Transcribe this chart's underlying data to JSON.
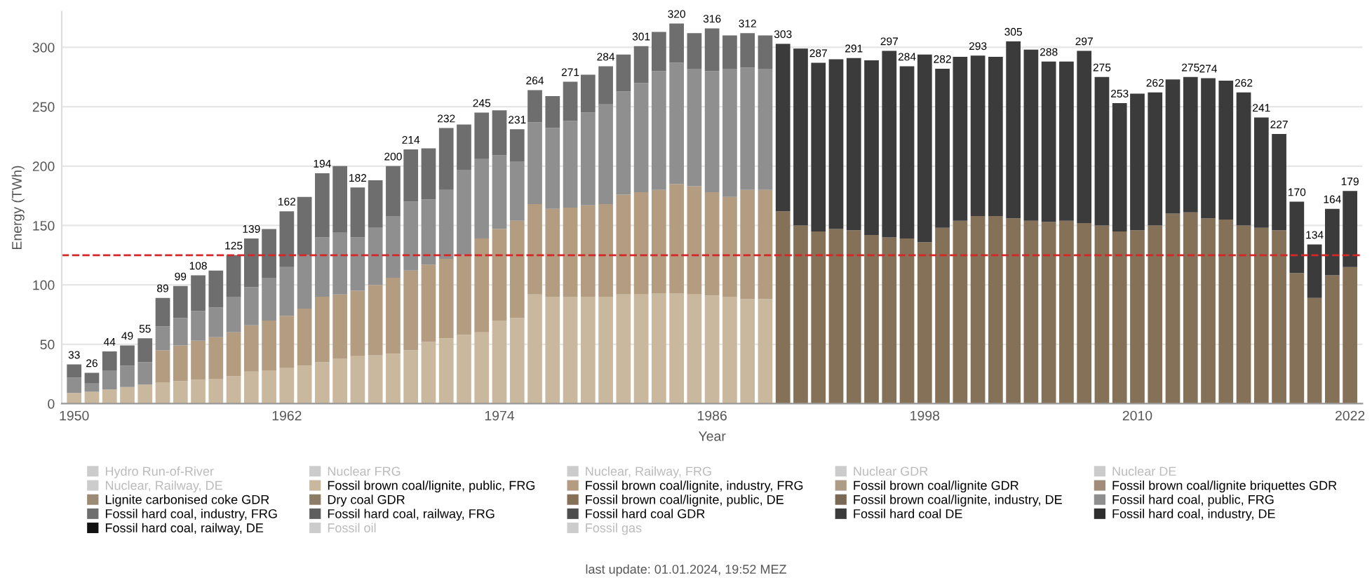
{
  "chart_data": {
    "type": "bar",
    "stacked": true,
    "xlabel": "Year",
    "ylabel": "Energy (TWh)",
    "x": [
      1950,
      1951,
      1952,
      1953,
      1954,
      1955,
      1956,
      1957,
      1958,
      1959,
      1960,
      1961,
      1962,
      1963,
      1964,
      1965,
      1966,
      1967,
      1968,
      1969,
      1970,
      1971,
      1972,
      1973,
      1974,
      1975,
      1976,
      1977,
      1978,
      1979,
      1980,
      1981,
      1982,
      1983,
      1984,
      1985,
      1986,
      1987,
      1988,
      1989,
      1990,
      1991,
      1992,
      1993,
      1994,
      1995,
      1996,
      1997,
      1998,
      1999,
      2000,
      2001,
      2002,
      2003,
      2004,
      2005,
      2006,
      2007,
      2008,
      2009,
      2010,
      2011,
      2012,
      2013,
      2014,
      2015,
      2016,
      2017,
      2018,
      2019,
      2020,
      2021,
      2022
    ],
    "xlim": [
      1949.3,
      2022.7
    ],
    "xticks": [
      1950,
      1962,
      1974,
      1986,
      1998,
      2010,
      2022
    ],
    "ylim": [
      0,
      330
    ],
    "yticks": [
      0,
      50,
      100,
      150,
      200,
      250,
      300
    ],
    "grid": "y",
    "legend": "bottom",
    "series": [
      {
        "name": "Hydro Run-of-River",
        "color": "#cccccc",
        "values": [
          null,
          null,
          null,
          null,
          null,
          null,
          null,
          null,
          null,
          null,
          null,
          null,
          null,
          null,
          null,
          null,
          null,
          null,
          null,
          null,
          null,
          null,
          null,
          null,
          null,
          null,
          null,
          null,
          null,
          null,
          null,
          null,
          null,
          null,
          null,
          null,
          null,
          null,
          null,
          null,
          null,
          null,
          null,
          null,
          null,
          null,
          null,
          null,
          null,
          null,
          null,
          null,
          null,
          null,
          null,
          null,
          null,
          null,
          null,
          null,
          null,
          null,
          null,
          null,
          null,
          null,
          null,
          null,
          null,
          null,
          null,
          null,
          null
        ]
      },
      {
        "name": "Nuclear FRG",
        "color": "#cccccc",
        "values": [
          null,
          null,
          null,
          null,
          null,
          null,
          null,
          null,
          null,
          null,
          null,
          null,
          null,
          null,
          null,
          null,
          null,
          null,
          null,
          null,
          null,
          null,
          null,
          null,
          null,
          null,
          null,
          null,
          null,
          null,
          null,
          null,
          null,
          null,
          null,
          null,
          null,
          null,
          null,
          null,
          null,
          null,
          null,
          null,
          null,
          null,
          null,
          null,
          null,
          null,
          null,
          null,
          null,
          null,
          null,
          null,
          null,
          null,
          null,
          null,
          null,
          null,
          null,
          null,
          null,
          null,
          null,
          null,
          null,
          null,
          null,
          null,
          null
        ]
      },
      {
        "name": "Nuclear, Railway, FRG",
        "color": "#cccccc",
        "values": [
          null,
          null,
          null,
          null,
          null,
          null,
          null,
          null,
          null,
          null,
          null,
          null,
          null,
          null,
          null,
          null,
          null,
          null,
          null,
          null,
          null,
          null,
          null,
          null,
          null,
          null,
          null,
          null,
          null,
          null,
          null,
          null,
          null,
          null,
          null,
          null,
          null,
          null,
          null,
          null,
          null,
          null,
          null,
          null,
          null,
          null,
          null,
          null,
          null,
          null,
          null,
          null,
          null,
          null,
          null,
          null,
          null,
          null,
          null,
          null,
          null,
          null,
          null,
          null,
          null,
          null,
          null,
          null,
          null,
          null,
          null,
          null,
          null
        ]
      },
      {
        "name": "Nuclear GDR",
        "color": "#cccccc",
        "values": [
          null,
          null,
          null,
          null,
          null,
          null,
          null,
          null,
          null,
          null,
          null,
          null,
          null,
          null,
          null,
          null,
          null,
          null,
          null,
          null,
          null,
          null,
          null,
          null,
          null,
          null,
          null,
          null,
          null,
          null,
          null,
          null,
          null,
          null,
          null,
          null,
          null,
          null,
          null,
          null,
          null,
          null,
          null,
          null,
          null,
          null,
          null,
          null,
          null,
          null,
          null,
          null,
          null,
          null,
          null,
          null,
          null,
          null,
          null,
          null,
          null,
          null,
          null,
          null,
          null,
          null,
          null,
          null,
          null,
          null,
          null,
          null,
          null
        ]
      },
      {
        "name": "Nuclear DE",
        "color": "#cccccc",
        "values": [
          null,
          null,
          null,
          null,
          null,
          null,
          null,
          null,
          null,
          null,
          null,
          null,
          null,
          null,
          null,
          null,
          null,
          null,
          null,
          null,
          null,
          null,
          null,
          null,
          null,
          null,
          null,
          null,
          null,
          null,
          null,
          null,
          null,
          null,
          null,
          null,
          null,
          null,
          null,
          null,
          null,
          null,
          null,
          null,
          null,
          null,
          null,
          null,
          null,
          null,
          null,
          null,
          null,
          null,
          null,
          null,
          null,
          null,
          null,
          null,
          null,
          null,
          null,
          null,
          null,
          null,
          null,
          null,
          null,
          null,
          null,
          null,
          null
        ]
      },
      {
        "name": "Nuclear, Railway, DE",
        "color": "#cccccc",
        "values": [
          null,
          null,
          null,
          null,
          null,
          null,
          null,
          null,
          null,
          null,
          null,
          null,
          null,
          null,
          null,
          null,
          null,
          null,
          null,
          null,
          null,
          null,
          null,
          null,
          null,
          null,
          null,
          null,
          null,
          null,
          null,
          null,
          null,
          null,
          null,
          null,
          null,
          null,
          null,
          null,
          null,
          null,
          null,
          null,
          null,
          null,
          null,
          null,
          null,
          null,
          null,
          null,
          null,
          null,
          null,
          null,
          null,
          null,
          null,
          null,
          null,
          null,
          null,
          null,
          null,
          null,
          null,
          null,
          null,
          null,
          null,
          null,
          null
        ]
      },
      {
        "name": "Fossil brown coal/lignite, public, FRG",
        "color": "#c9b89e",
        "values": [
          9,
          10,
          12,
          14,
          16,
          18,
          19,
          20,
          21,
          23,
          27,
          28,
          30,
          32,
          35,
          38,
          40,
          41,
          42,
          45,
          52,
          55,
          58,
          60,
          70,
          72,
          92,
          90,
          90,
          90,
          90,
          92,
          92,
          93,
          93,
          92,
          91,
          90,
          88,
          88,
          null,
          null,
          null,
          null,
          null,
          null,
          null,
          null,
          null,
          null,
          null,
          null,
          null,
          null,
          null,
          null,
          null,
          null,
          null,
          null,
          null,
          null,
          null,
          null,
          null,
          null,
          null,
          null,
          null,
          null,
          null,
          null,
          null
        ]
      },
      {
        "name": "Fossil brown coal/lignite, industry, FRG",
        "color": "#b39c80",
        "values": [
          0,
          0,
          0,
          0,
          0,
          27,
          30,
          33,
          35,
          37,
          39,
          42,
          44,
          48,
          55,
          54,
          55,
          59,
          64,
          67,
          65,
          67,
          67,
          79,
          77,
          82,
          76,
          74,
          75,
          77,
          78,
          84,
          86,
          87,
          92,
          91,
          87,
          84,
          92,
          92,
          null,
          null,
          null,
          null,
          null,
          null,
          null,
          null,
          null,
          null,
          null,
          null,
          null,
          null,
          null,
          null,
          null,
          null,
          null,
          null,
          null,
          null,
          null,
          null,
          null,
          null,
          null,
          null,
          null,
          null,
          null,
          null,
          null
        ]
      },
      {
        "name": "Fossil brown coal/lignite GDR",
        "color": "#ad9d86",
        "values": [
          null,
          null,
          null,
          null,
          null,
          null,
          null,
          null,
          null,
          null,
          null,
          null,
          null,
          null,
          null,
          null,
          null,
          null,
          null,
          null,
          null,
          null,
          null,
          null,
          null,
          null,
          null,
          null,
          null,
          null,
          null,
          null,
          null,
          null,
          null,
          null,
          null,
          null,
          null,
          null,
          null,
          null,
          null,
          null,
          null,
          null,
          null,
          null,
          null,
          null,
          null,
          null,
          null,
          null,
          null,
          null,
          null,
          null,
          null,
          null,
          null,
          null,
          null,
          null,
          null,
          null,
          null,
          null,
          null,
          null,
          null,
          null,
          null
        ]
      },
      {
        "name": "Fossil brown coal/lignite briquettes GDR",
        "color": "#a08c78",
        "values": [
          null,
          null,
          null,
          null,
          null,
          null,
          null,
          null,
          null,
          null,
          null,
          null,
          null,
          null,
          null,
          null,
          null,
          null,
          null,
          null,
          null,
          null,
          null,
          null,
          null,
          null,
          null,
          null,
          null,
          null,
          null,
          null,
          null,
          null,
          null,
          null,
          null,
          null,
          null,
          null,
          null,
          null,
          null,
          null,
          null,
          null,
          null,
          null,
          null,
          null,
          null,
          null,
          null,
          null,
          null,
          null,
          null,
          null,
          null,
          null,
          null,
          null,
          null,
          null,
          null,
          null,
          null,
          null,
          null,
          null,
          null,
          null,
          null
        ]
      },
      {
        "name": "Lignite carbonised coke GDR",
        "color": "#9b8a74",
        "values": [
          null,
          null,
          null,
          null,
          null,
          null,
          null,
          null,
          null,
          null,
          null,
          null,
          null,
          null,
          null,
          null,
          null,
          null,
          null,
          null,
          null,
          null,
          null,
          null,
          null,
          null,
          null,
          null,
          null,
          null,
          null,
          null,
          null,
          null,
          null,
          null,
          null,
          null,
          null,
          null,
          null,
          null,
          null,
          null,
          null,
          null,
          null,
          null,
          null,
          null,
          null,
          null,
          null,
          null,
          null,
          null,
          null,
          null,
          null,
          null,
          null,
          null,
          null,
          null,
          null,
          null,
          null,
          null,
          null,
          null,
          null,
          null,
          null
        ]
      },
      {
        "name": "Dry coal GDR",
        "color": "#8c7c66",
        "values": [
          null,
          null,
          null,
          null,
          null,
          null,
          null,
          null,
          null,
          null,
          null,
          null,
          null,
          null,
          null,
          null,
          null,
          null,
          null,
          null,
          null,
          null,
          null,
          null,
          null,
          null,
          null,
          null,
          null,
          null,
          null,
          null,
          null,
          null,
          null,
          null,
          null,
          null,
          null,
          null,
          null,
          null,
          null,
          null,
          null,
          null,
          null,
          null,
          null,
          null,
          null,
          null,
          null,
          null,
          null,
          null,
          null,
          null,
          null,
          null,
          null,
          null,
          null,
          null,
          null,
          null,
          null,
          null,
          null,
          null,
          null,
          null,
          null
        ]
      },
      {
        "name": "Fossil brown coal/lignite, public, DE",
        "color": "#857157",
        "values": [
          null,
          null,
          null,
          null,
          null,
          null,
          null,
          null,
          null,
          null,
          null,
          null,
          null,
          null,
          null,
          null,
          null,
          null,
          null,
          null,
          null,
          null,
          null,
          null,
          null,
          null,
          null,
          null,
          null,
          null,
          null,
          null,
          null,
          null,
          null,
          null,
          null,
          null,
          null,
          null,
          162,
          150,
          145,
          147,
          146,
          142,
          140,
          139,
          136,
          148,
          154,
          158,
          158,
          156,
          154,
          153,
          154,
          152,
          150,
          145,
          146,
          150,
          160,
          161,
          156,
          155,
          150,
          148,
          146,
          110,
          89,
          108,
          115
        ]
      },
      {
        "name": "Fossil brown coal/lignite, industry, DE",
        "color": "#7a6a55",
        "values": [
          null,
          null,
          null,
          null,
          null,
          null,
          null,
          null,
          null,
          null,
          null,
          null,
          null,
          null,
          null,
          null,
          null,
          null,
          null,
          null,
          null,
          null,
          null,
          null,
          null,
          null,
          null,
          null,
          null,
          null,
          null,
          null,
          null,
          null,
          null,
          null,
          null,
          null,
          null,
          null,
          null,
          null,
          null,
          null,
          null,
          null,
          null,
          null,
          null,
          null,
          null,
          null,
          null,
          null,
          null,
          null,
          null,
          null,
          null,
          null,
          null,
          null,
          null,
          null,
          null,
          null,
          null,
          null,
          null,
          null,
          null,
          null,
          null
        ]
      },
      {
        "name": "Fossil hard coal, public, FRG",
        "color": "#8f8f8f",
        "values": [
          13,
          7,
          16,
          18,
          19,
          20,
          23,
          25,
          25,
          30,
          32,
          36,
          41,
          45,
          50,
          52,
          45,
          48,
          52,
          58,
          55,
          58,
          72,
          67,
          62,
          50,
          69,
          68,
          73,
          78,
          84,
          87,
          92,
          100,
          102,
          99,
          102,
          108,
          103,
          102,
          null,
          null,
          null,
          null,
          null,
          null,
          null,
          null,
          null,
          null,
          null,
          null,
          null,
          null,
          null,
          null,
          null,
          null,
          null,
          null,
          null,
          null,
          null,
          null,
          null,
          null,
          null,
          null,
          null,
          null,
          null,
          null,
          null
        ]
      },
      {
        "name": "Fossil hard coal, industry, FRG",
        "color": "#6e6e6e",
        "values": [
          11,
          9,
          16,
          17,
          20,
          24,
          27,
          30,
          31,
          35,
          41,
          41,
          47,
          49,
          54,
          56,
          42,
          40,
          42,
          44,
          43,
          52,
          38,
          39,
          38,
          27,
          27,
          27,
          33,
          32,
          32,
          31,
          31,
          33,
          33,
          30,
          36,
          28,
          29,
          28,
          null,
          null,
          null,
          null,
          null,
          null,
          null,
          null,
          null,
          null,
          null,
          null,
          null,
          null,
          null,
          null,
          null,
          null,
          null,
          null,
          null,
          null,
          null,
          null,
          null,
          null,
          null,
          null,
          null,
          null,
          null,
          null,
          null
        ]
      },
      {
        "name": "Fossil hard coal, railway, FRG",
        "color": "#5e5e5e",
        "values": [
          null,
          null,
          null,
          null,
          null,
          null,
          null,
          null,
          null,
          null,
          null,
          null,
          null,
          null,
          null,
          null,
          null,
          null,
          null,
          null,
          null,
          null,
          null,
          null,
          null,
          null,
          null,
          null,
          null,
          null,
          null,
          null,
          null,
          null,
          null,
          null,
          null,
          null,
          null,
          null,
          null,
          null,
          null,
          null,
          null,
          null,
          null,
          null,
          null,
          null,
          null,
          null,
          null,
          null,
          null,
          null,
          null,
          null,
          null,
          null,
          null,
          null,
          null,
          null,
          null,
          null,
          null,
          null,
          null,
          null,
          null,
          null,
          null
        ]
      },
      {
        "name": "Fossil hard coal GDR",
        "color": "#4d4d4d",
        "values": [
          null,
          null,
          null,
          null,
          null,
          null,
          null,
          null,
          null,
          null,
          null,
          null,
          null,
          null,
          null,
          null,
          null,
          null,
          null,
          null,
          null,
          null,
          null,
          null,
          null,
          null,
          null,
          null,
          null,
          null,
          null,
          null,
          null,
          null,
          null,
          null,
          null,
          null,
          null,
          null,
          null,
          null,
          null,
          null,
          null,
          null,
          null,
          null,
          null,
          null,
          null,
          null,
          null,
          null,
          null,
          null,
          null,
          null,
          null,
          null,
          null,
          null,
          null,
          null,
          null,
          null,
          null,
          null,
          null,
          null,
          null,
          null,
          null
        ]
      },
      {
        "name": "Fossil hard coal DE",
        "color": "#3b3b3b",
        "values": [
          null,
          null,
          null,
          null,
          null,
          null,
          null,
          null,
          null,
          null,
          null,
          null,
          null,
          null,
          null,
          null,
          null,
          null,
          null,
          null,
          null,
          null,
          null,
          null,
          null,
          null,
          null,
          null,
          null,
          null,
          null,
          null,
          null,
          null,
          null,
          null,
          null,
          null,
          null,
          null,
          141,
          149,
          142,
          143,
          145,
          147,
          157,
          145,
          158,
          134,
          138,
          135,
          134,
          149,
          144,
          135,
          134,
          145,
          125,
          108,
          115,
          112,
          113,
          114,
          118,
          117,
          112,
          93,
          81,
          60,
          45,
          56,
          64
        ]
      },
      {
        "name": "Fossil hard coal, industry, DE",
        "color": "#2e2e2e",
        "values": [
          null,
          null,
          null,
          null,
          null,
          null,
          null,
          null,
          null,
          null,
          null,
          null,
          null,
          null,
          null,
          null,
          null,
          null,
          null,
          null,
          null,
          null,
          null,
          null,
          null,
          null,
          null,
          null,
          null,
          null,
          null,
          null,
          null,
          null,
          null,
          null,
          null,
          null,
          null,
          null,
          null,
          null,
          null,
          null,
          null,
          null,
          null,
          null,
          null,
          null,
          null,
          null,
          null,
          null,
          null,
          null,
          null,
          null,
          null,
          null,
          null,
          null,
          null,
          null,
          null,
          null,
          null,
          null,
          null,
          null,
          null,
          null,
          null
        ]
      },
      {
        "name": "Fossil hard coal, railway, DE",
        "color": "#111111",
        "values": [
          null,
          null,
          null,
          null,
          null,
          null,
          null,
          null,
          null,
          null,
          null,
          null,
          null,
          null,
          null,
          null,
          null,
          null,
          null,
          null,
          null,
          null,
          null,
          null,
          null,
          null,
          null,
          null,
          null,
          null,
          null,
          null,
          null,
          null,
          null,
          null,
          null,
          null,
          null,
          null,
          null,
          null,
          null,
          null,
          null,
          null,
          null,
          null,
          null,
          null,
          null,
          null,
          null,
          null,
          null,
          null,
          null,
          null,
          null,
          null,
          null,
          null,
          null,
          null,
          null,
          null,
          null,
          null,
          null,
          null,
          null,
          null,
          null
        ]
      },
      {
        "name": "Fossil oil",
        "color": "#cccccc",
        "values": [
          null,
          null,
          null,
          null,
          null,
          null,
          null,
          null,
          null,
          null,
          null,
          null,
          null,
          null,
          null,
          null,
          null,
          null,
          null,
          null,
          null,
          null,
          null,
          null,
          null,
          null,
          null,
          null,
          null,
          null,
          null,
          null,
          null,
          null,
          null,
          null,
          null,
          null,
          null,
          null,
          null,
          null,
          null,
          null,
          null,
          null,
          null,
          null,
          null,
          null,
          null,
          null,
          null,
          null,
          null,
          null,
          null,
          null,
          null,
          null,
          null,
          null,
          null,
          null,
          null,
          null,
          null,
          null,
          null,
          null,
          null,
          null,
          null
        ]
      },
      {
        "name": "Fossil gas",
        "color": "#cccccc",
        "values": [
          null,
          null,
          null,
          null,
          null,
          null,
          null,
          null,
          null,
          null,
          null,
          null,
          null,
          null,
          null,
          null,
          null,
          null,
          null,
          null,
          null,
          null,
          null,
          null,
          null,
          null,
          null,
          null,
          null,
          null,
          null,
          null,
          null,
          null,
          null,
          null,
          null,
          null,
          null,
          null,
          null,
          null,
          null,
          null,
          null,
          null,
          null,
          null,
          null,
          null,
          null,
          null,
          null,
          null,
          null,
          null,
          null,
          null,
          null,
          null,
          null,
          null,
          null,
          null,
          null,
          null,
          null,
          null,
          null,
          null,
          null,
          null,
          null
        ]
      }
    ],
    "totals": [
      "33",
      "26",
      "44",
      "49",
      "55",
      "89",
      "99",
      "108",
      null,
      "125",
      "139",
      null,
      "162",
      null,
      "194",
      null,
      "182",
      null,
      "200",
      "214",
      null,
      "232",
      null,
      "245",
      null,
      "231",
      "264",
      null,
      "271",
      null,
      "284",
      null,
      "301",
      null,
      "320",
      null,
      "316",
      null,
      "312",
      null,
      "303",
      null,
      "287",
      null,
      "291",
      null,
      "297",
      "284",
      null,
      "282",
      null,
      "293",
      null,
      "305",
      null,
      "288",
      null,
      "297",
      "275",
      "253",
      null,
      "262",
      null,
      "275",
      "274",
      null,
      "262",
      "241",
      "227",
      "170",
      "134",
      "164",
      "179"
    ],
    "ref_lines": [
      {
        "axis": "y",
        "value": 125,
        "color": "#d62728",
        "line_style": "dashed"
      }
    ],
    "annotations": [
      "last update: 01.01.2024, 19:52 MEZ"
    ]
  }
}
